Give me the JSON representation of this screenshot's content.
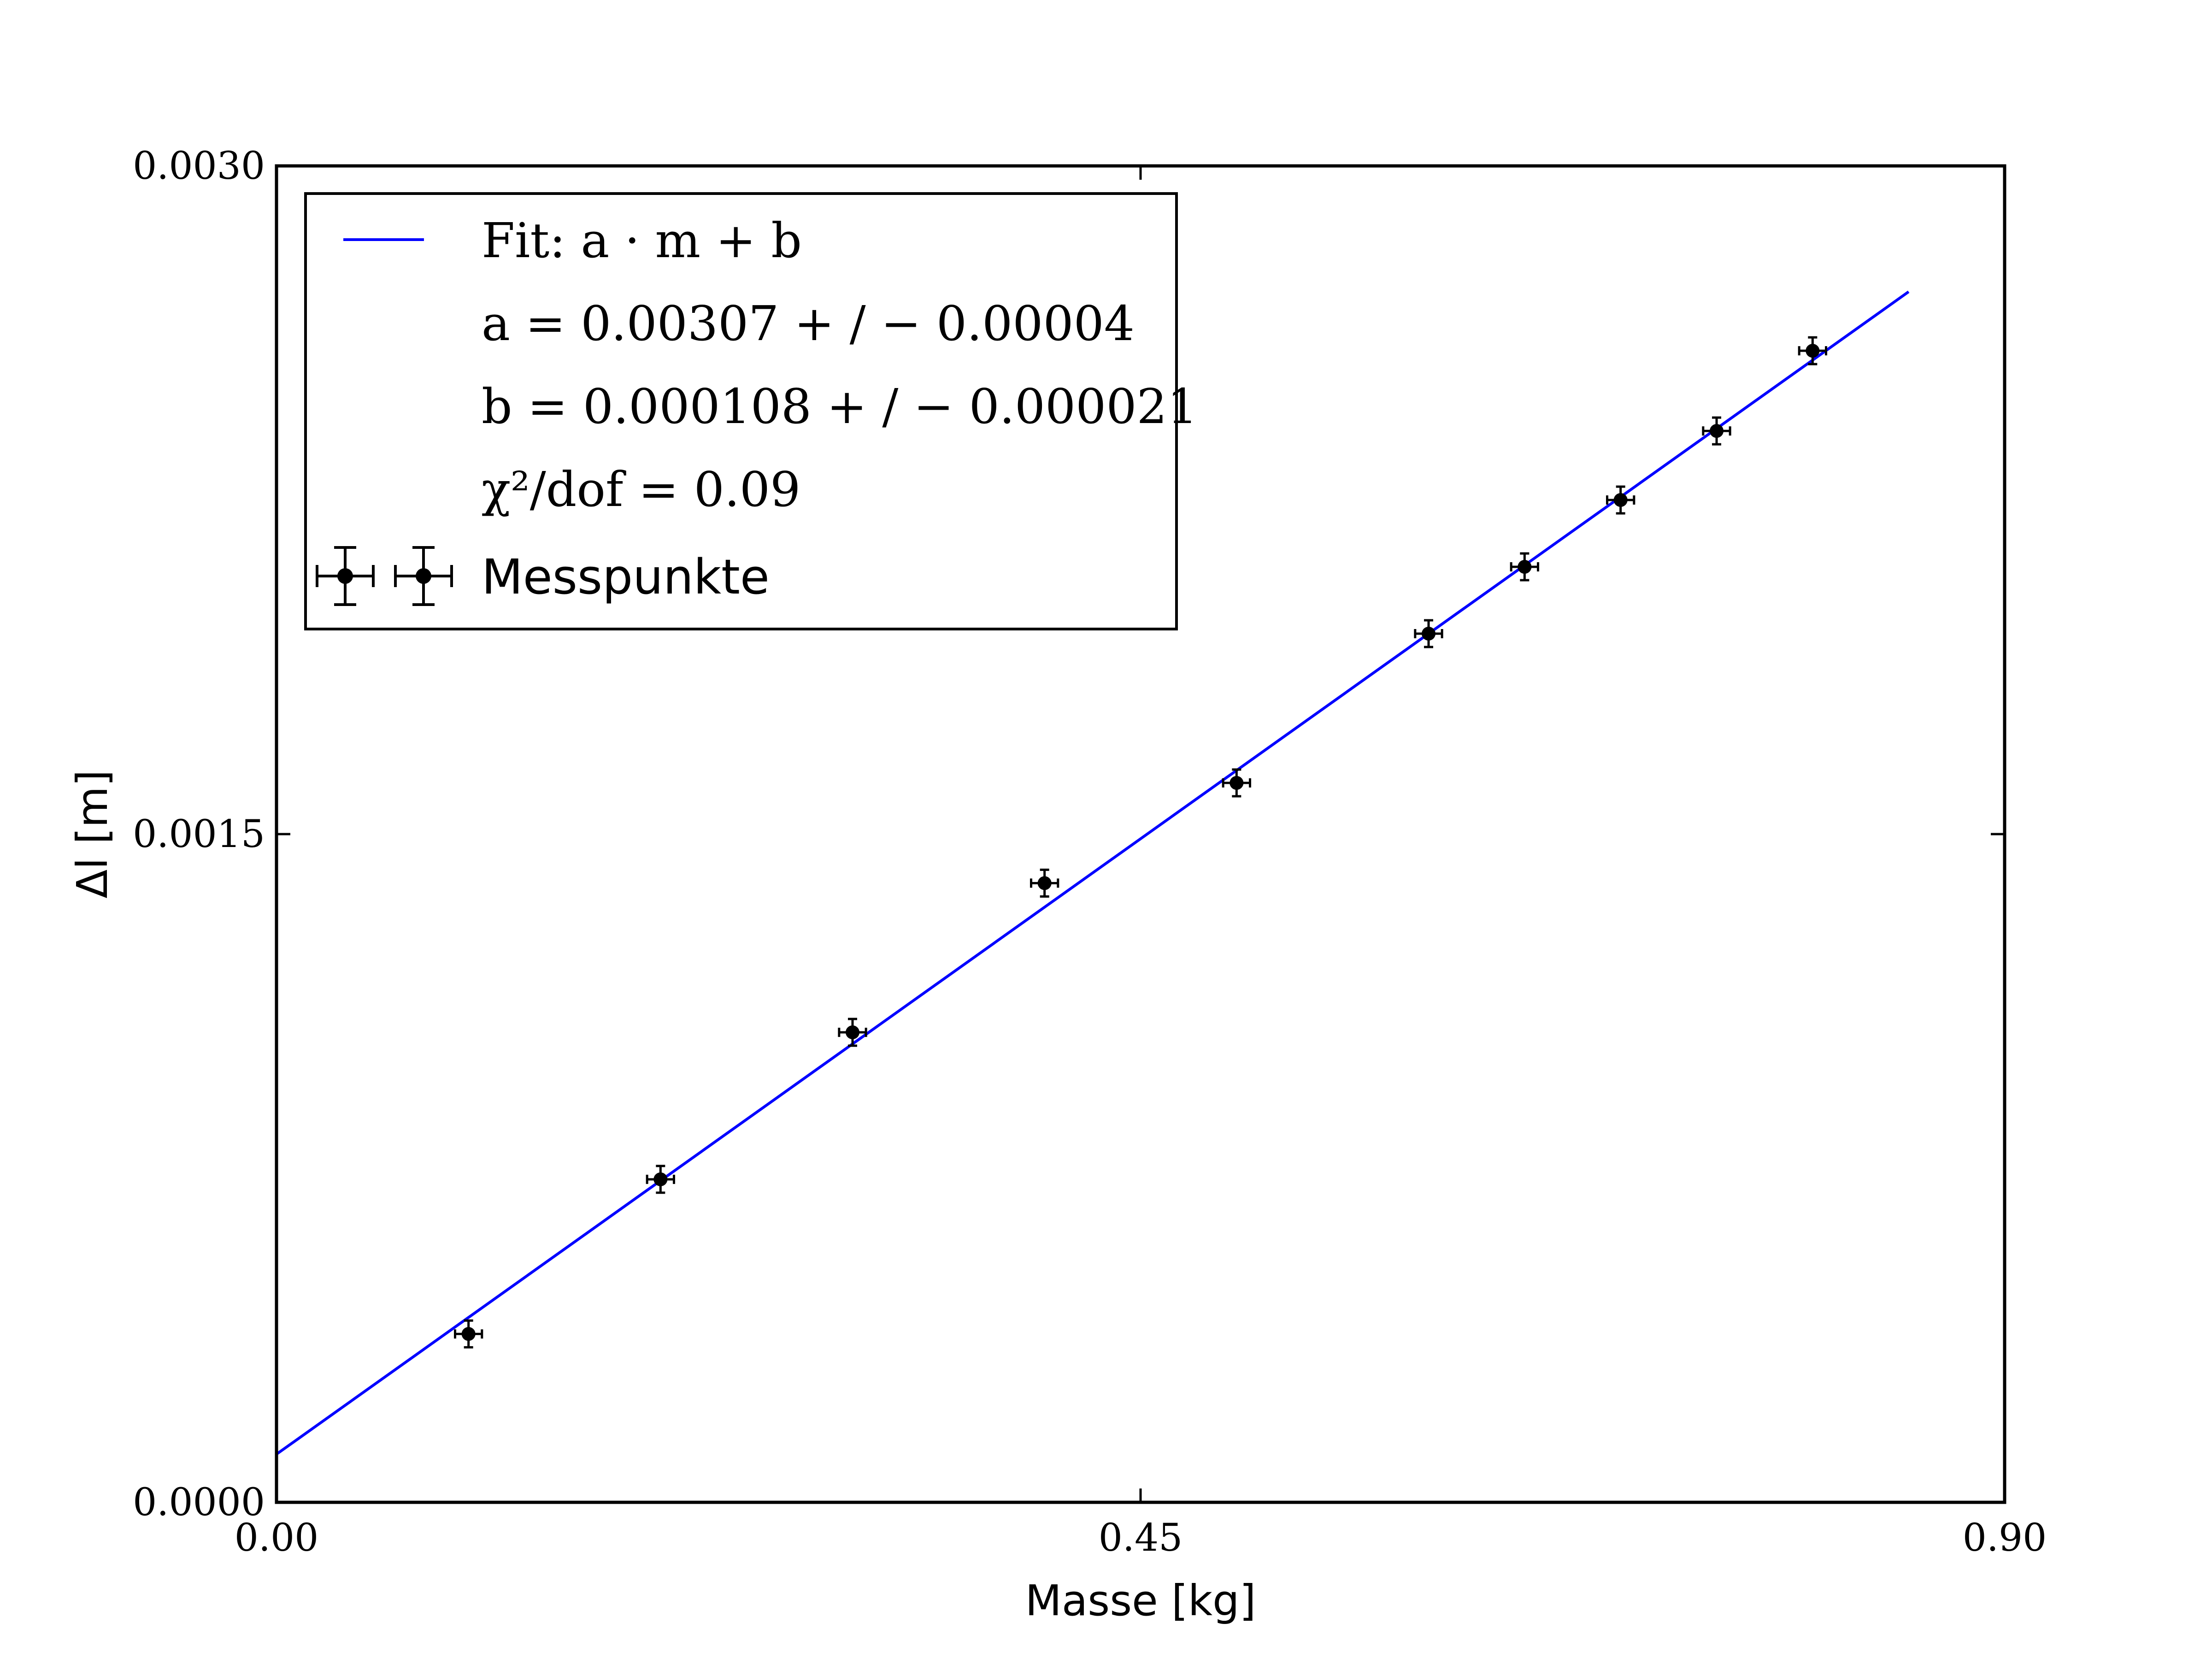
{
  "chart_data": {
    "type": "scatter",
    "xlabel": "Masse [kg]",
    "ylabel": "Δl [m]",
    "xlim": [
      0.0,
      0.9
    ],
    "ylim": [
      0.0,
      0.003
    ],
    "x_ticks": [
      0.0,
      0.45,
      0.9
    ],
    "x_tick_labels": [
      "0.00",
      "0.45",
      "0.90"
    ],
    "y_ticks": [
      0.0,
      0.0015,
      0.003
    ],
    "y_tick_labels": [
      "0.0000",
      "0.0015",
      "0.0030"
    ],
    "grid": false,
    "legend": {
      "placement": "top-left",
      "entries": [
        {
          "label": "Fit: a · m + b",
          "marker": "line",
          "color": "#0000ff"
        },
        {
          "label": "a = 0.00307 + / − 0.00004",
          "marker": "none"
        },
        {
          "label": "b = 0.000108 + / − 0.000021",
          "marker": "none"
        },
        {
          "label": "χ²/dof = 0.09",
          "marker": "none"
        },
        {
          "label": "Messpunkte",
          "marker": "errorbar",
          "color": "#000000"
        }
      ]
    },
    "series": [
      {
        "kind": "errorbar",
        "name": "Messpunkte",
        "color": "#000000",
        "x": [
          0.1,
          0.2,
          0.3,
          0.4,
          0.5,
          0.6,
          0.65,
          0.7,
          0.75,
          0.8
        ],
        "y": [
          0.000378,
          0.000725,
          0.001055,
          0.00139,
          0.001615,
          0.00195,
          0.0021,
          0.00225,
          0.002405,
          0.002585
        ],
        "xerr": 0.007,
        "yerr": 3e-05
      },
      {
        "kind": "line",
        "fit": true,
        "color": "#0000ff",
        "slope": 0.00307,
        "intercept": 0.000108,
        "x_range": [
          0.0,
          0.85
        ]
      }
    ]
  }
}
